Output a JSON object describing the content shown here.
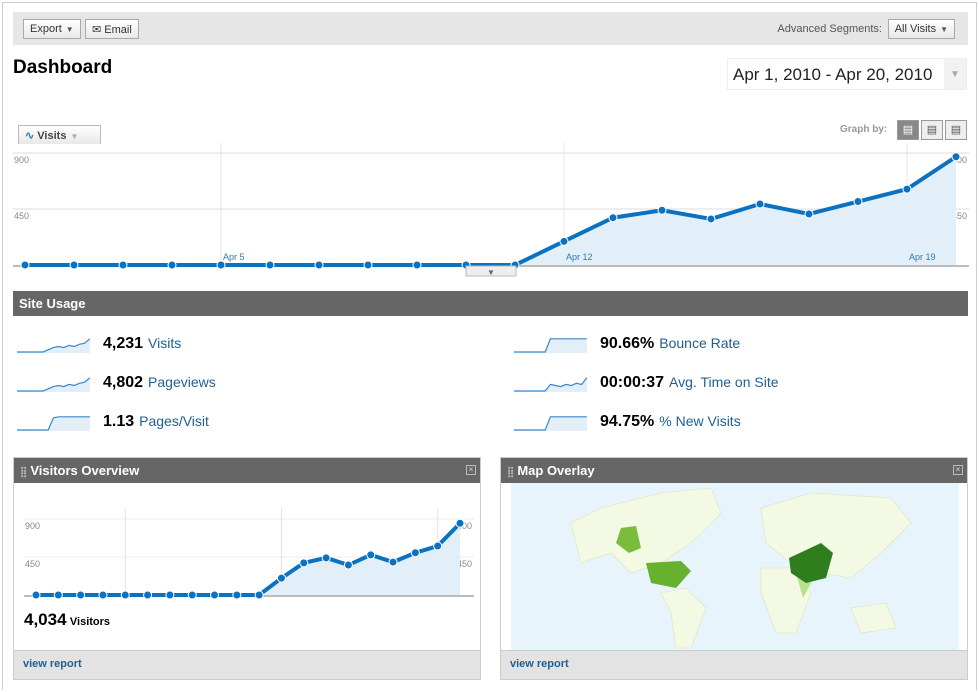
{
  "toolbar": {
    "export_label": "Export",
    "email_label": "Email",
    "segments_label": "Advanced Segments:",
    "segment_value": "All Visits"
  },
  "page_title": "Dashboard",
  "date_range": "Apr 1, 2010 - Apr 20, 2010",
  "graph": {
    "metric_tab": "Visits",
    "graph_by_label": "Graph by:"
  },
  "chart_data": [
    {
      "type": "area",
      "title": "Visits",
      "x": [
        "Apr 1",
        "Apr 2",
        "Apr 3",
        "Apr 4",
        "Apr 5",
        "Apr 6",
        "Apr 7",
        "Apr 8",
        "Apr 9",
        "Apr 10",
        "Apr 11",
        "Apr 12",
        "Apr 13",
        "Apr 14",
        "Apr 15",
        "Apr 16",
        "Apr 17",
        "Apr 18",
        "Apr 19",
        "Apr 20"
      ],
      "values": [
        0,
        0,
        0,
        0,
        0,
        0,
        0,
        0,
        0,
        0,
        0,
        190,
        380,
        440,
        370,
        490,
        410,
        510,
        610,
        870
      ],
      "ylim": [
        0,
        900
      ],
      "yticks": [
        "450",
        "900"
      ],
      "xticks": [
        "Apr 5",
        "Apr 12",
        "Apr 19"
      ],
      "color": "#0b72c1"
    },
    {
      "type": "area",
      "title": "Visitors Overview",
      "values": [
        0,
        0,
        0,
        0,
        0,
        0,
        0,
        0,
        0,
        0,
        0,
        200,
        380,
        440,
        355,
        475,
        390,
        500,
        580,
        850
      ],
      "ylim": [
        0,
        900
      ],
      "yticks": [
        "450",
        "900"
      ],
      "color": "#0b72c1"
    }
  ],
  "site_usage": {
    "title": "Site Usage",
    "metrics": [
      {
        "value": "4,231",
        "label": "Visits"
      },
      {
        "value": "4,802",
        "label": "Pageviews"
      },
      {
        "value": "1.13",
        "label": "Pages/Visit"
      },
      {
        "value": "90.66%",
        "label": "Bounce Rate"
      },
      {
        "value": "00:00:37",
        "label": "Avg. Time on Site"
      },
      {
        "value": "94.75%",
        "label": "% New Visits"
      }
    ]
  },
  "visitors_overview": {
    "title": "Visitors Overview",
    "count": "4,034",
    "count_label": "Visitors",
    "link": "view report"
  },
  "map_overlay": {
    "title": "Map Overlay",
    "link": "view report"
  }
}
